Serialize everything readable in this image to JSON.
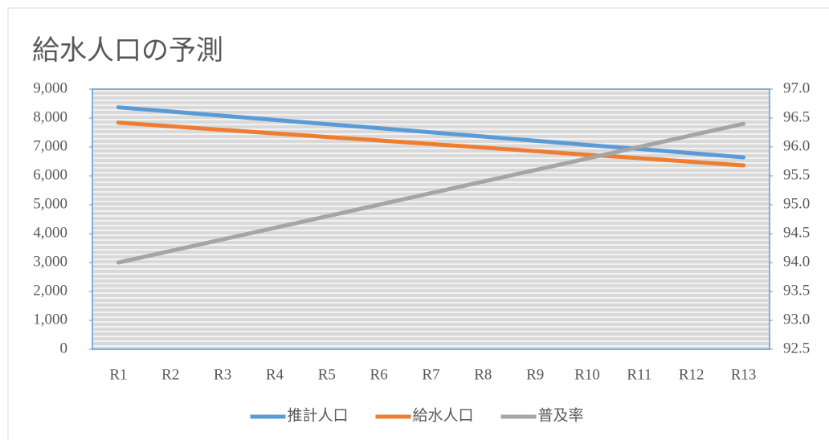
{
  "chart_data": {
    "type": "line",
    "title": "給水人口の予測",
    "categories": [
      "R1",
      "R2",
      "R3",
      "R4",
      "R5",
      "R6",
      "R7",
      "R8",
      "R9",
      "R10",
      "R11",
      "R12",
      "R13"
    ],
    "series": [
      {
        "name": "推計人口",
        "color": "#5b9bd5",
        "values": [
          8370,
          8225,
          8080,
          7935,
          7790,
          7650,
          7505,
          7360,
          7215,
          7070,
          6930,
          6785,
          6640
        ]
      },
      {
        "name": "給水人口",
        "color": "#ed7d31",
        "values": [
          7840,
          7715,
          7590,
          7470,
          7345,
          7225,
          7100,
          6980,
          6855,
          6730,
          6610,
          6485,
          6360
        ]
      },
      {
        "name": "普及率",
        "color": "#a5a5a5",
        "axis": "y2",
        "values": [
          94.0,
          94.2,
          94.4,
          94.6,
          94.8,
          95.0,
          95.2,
          95.4,
          95.6,
          95.8,
          96.0,
          96.2,
          96.4
        ]
      }
    ],
    "ylim": [
      0,
      9000
    ],
    "yticks": [
      0,
      {
        "value": 1000,
        "label": "1,000"
      },
      {
        "value": 2000,
        "label": "2,000"
      },
      {
        "value": 3000,
        "label": "3,000"
      },
      {
        "value": 4000,
        "label": "4,000"
      },
      {
        "value": 5000,
        "label": "5,000"
      },
      {
        "value": 6000,
        "label": "6,000"
      },
      {
        "value": 7000,
        "label": "7,000"
      },
      {
        "value": 8000,
        "label": "8,000"
      },
      {
        "value": 9000,
        "label": "9,000"
      }
    ],
    "y2lim": [
      92.5,
      97.0
    ],
    "y2ticks": [
      92.5,
      {
        "value": 93,
        "label": "93.0"
      },
      93.5,
      {
        "value": 94,
        "label": "94.0"
      },
      94.5,
      {
        "value": 95,
        "label": "95.0"
      },
      95.5,
      {
        "value": 96,
        "label": "96.0"
      },
      96.5,
      {
        "value": 97,
        "label": "97.0"
      }
    ],
    "legend": "bottom"
  }
}
